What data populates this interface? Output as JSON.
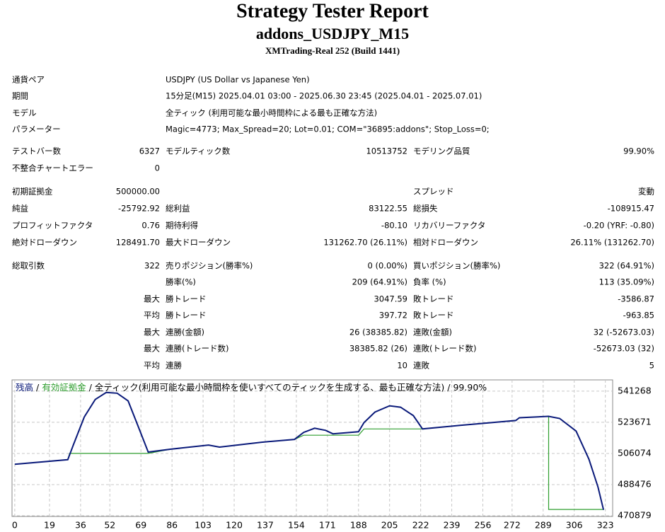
{
  "header": {
    "title": "Strategy Tester Report",
    "subtitle": "addons_USDJPY_M15",
    "server": "XMTrading-Real 252 (Build 1441)"
  },
  "info": [
    {
      "label": "通貨ペア",
      "value": "USDJPY (US Dollar vs Japanese Yen)"
    },
    {
      "label": "期間",
      "value": "15分足(M15) 2025.04.01 03:00 - 2025.06.30 23:45 (2025.04.01 - 2025.07.01)"
    },
    {
      "label": "モデル",
      "value": "全ティック (利用可能な最小時間枠による最も正確な方法)"
    },
    {
      "label": "パラメーター",
      "value": "Magic=4773; Max_Spread=20; Lot=0.01; COM=\"36895:addons\"; Stop_Loss=0;"
    }
  ],
  "stats": [
    [
      {
        "l1": "テストバー数",
        "v1": "6327",
        "l2": "モデルティック数",
        "v2": "10513752",
        "l3": "モデリング品質",
        "v3": "99.90%"
      },
      {
        "l1": "不整合チャートエラー",
        "v1": "0"
      }
    ],
    [
      {
        "l1": "初期証拠金",
        "v1": "500000.00",
        "l3": "スプレッド",
        "v3": "変動"
      },
      {
        "l1": "純益",
        "v1": "-25792.92",
        "l2": "総利益",
        "v2": "83122.55",
        "l3": "総損失",
        "v3": "-108915.47"
      },
      {
        "l1": "プロフィットファクタ",
        "v1": "0.76",
        "l2": "期待利得",
        "v2": "-80.10",
        "l3": "リカバリーファクタ",
        "v3": "-0.20 (YRF: -0.80)"
      },
      {
        "l1": "絶対ドローダウン",
        "v1": "128491.70",
        "l2": "最大ドローダウン",
        "v2": "131262.70 (26.11%)",
        "l3": "相対ドローダウン",
        "v3": "26.11% (131262.70)"
      }
    ],
    [
      {
        "l1": "総取引数",
        "v1": "322",
        "l2": "売りポジション(勝率%)",
        "v2": "0 (0.00%)",
        "l3": "買いポジション(勝率%)",
        "v3": "322 (64.91%)"
      },
      {
        "l2": "勝率(%)",
        "v2": "209 (64.91%)",
        "l3": "負率 (%)",
        "v3": "113 (35.09%)"
      },
      {
        "p": "最大",
        "l2": "勝トレード",
        "v2": "3047.59",
        "l3": "敗トレード",
        "v3": "-3586.87"
      },
      {
        "p": "平均",
        "l2": "勝トレード",
        "v2": "397.72",
        "l3": "敗トレード",
        "v3": "-963.85"
      },
      {
        "p": "最大",
        "l2": "連勝(金額)",
        "v2": "26 (38385.82)",
        "l3": "連敗(金額)",
        "v3": "32 (-52673.03)"
      },
      {
        "p": "最大",
        "l2": "連勝(トレード数)",
        "v2": "38385.82 (26)",
        "l3": "連敗(トレード数)",
        "v3": "-52673.03 (32)"
      },
      {
        "p": "平均",
        "l2": "連勝",
        "v2": "10",
        "l3": "連敗",
        "v3": "5"
      }
    ]
  ],
  "chart_data": {
    "type": "line",
    "legend_separator": "/",
    "subtitle": "全ティック(利用可能な最小時間枠を使いすべてのティックを生成する、最も正確な方法)",
    "annotation": "99.90%",
    "xlim": [
      -1.5,
      327
    ],
    "ylim": [
      470500,
      547600
    ],
    "xticks": [
      0,
      19,
      36,
      52,
      69,
      86,
      103,
      120,
      137,
      154,
      171,
      188,
      205,
      222,
      239,
      256,
      272,
      289,
      306,
      323
    ],
    "yticks": [
      470879,
      488476,
      506074,
      523671,
      541268
    ],
    "grid": true,
    "series": [
      {
        "name": "残高",
        "color": "#0a1a7a",
        "x": [
          0,
          29,
          32,
          38,
          44,
          50,
          56,
          62,
          67,
          73,
          85,
          106,
          112,
          135,
          153,
          158,
          164,
          170,
          174,
          188,
          191,
          197,
          205,
          211,
          218,
          223,
          243,
          274,
          276,
          292,
          298,
          307,
          314,
          319,
          322
        ],
        "values": [
          500000,
          502519,
          510822,
          526638,
          536523,
          540477,
          540082,
          535732,
          522684,
          506868,
          508450,
          510822,
          509636,
          512404,
          513985,
          517939,
          520312,
          519126,
          517149,
          518335,
          523475,
          529406,
          532965,
          532174,
          527429,
          519916,
          521893,
          524661,
          526243,
          527034,
          525847,
          518730,
          502914,
          487098,
          474207
        ]
      },
      {
        "name": "有効証拠金",
        "color": "#2e9e2e",
        "x": [
          0,
          29,
          30,
          73,
          85,
          106,
          112,
          135,
          153,
          158,
          188,
          191,
          223,
          243,
          274,
          276,
          292,
          292,
          322
        ],
        "values": [
          500000,
          502519,
          506077,
          506077,
          508450,
          510822,
          509636,
          512404,
          513985,
          516358,
          516358,
          519916,
          519916,
          521893,
          524661,
          526243,
          527034,
          474446,
          474446
        ]
      }
    ]
  }
}
